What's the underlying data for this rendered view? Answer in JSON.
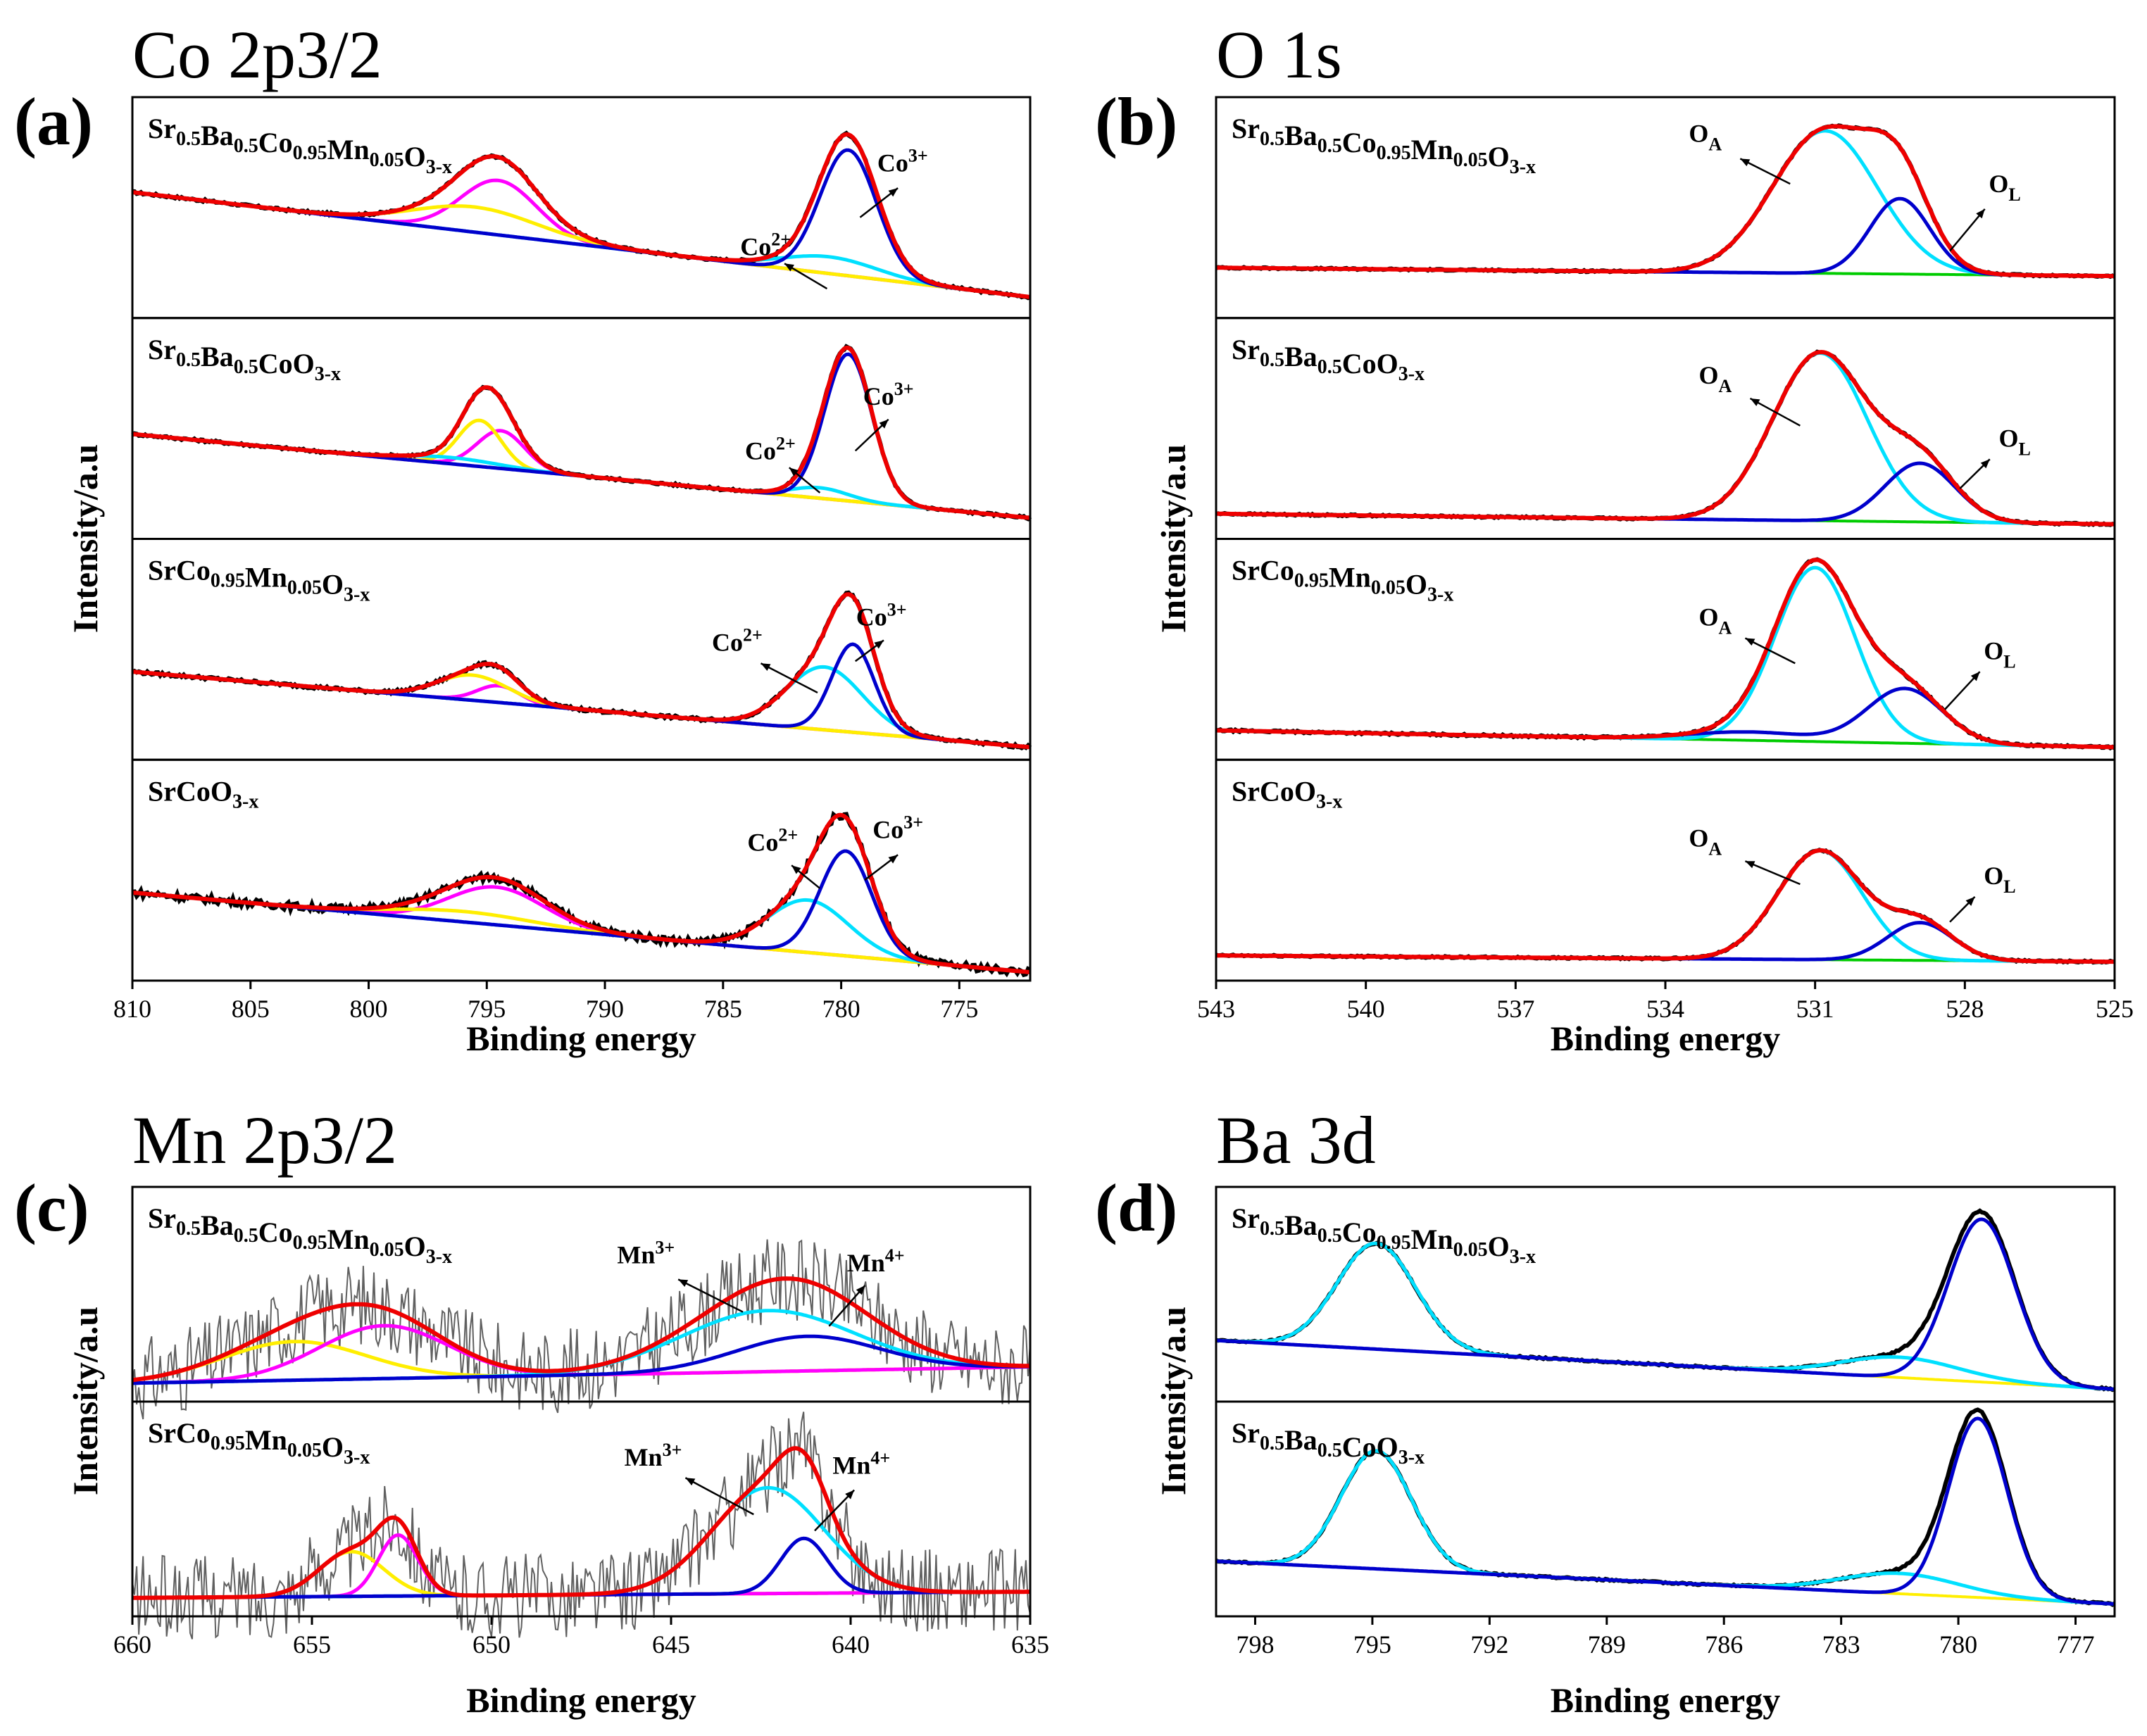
{
  "chart_data": [
    {
      "panel": "(a)",
      "title": "Co 2p3/2",
      "type": "line",
      "xlabel": "Binding energy",
      "ylabel": "Intensity/a.u",
      "xlim": [
        810,
        772
      ],
      "xticks": [
        "810",
        "805",
        "800",
        "795",
        "790",
        "785",
        "780",
        "775"
      ],
      "subplots": [
        {
          "name_main": [
            "Sr",
            "Ba",
            "Co",
            "Mn",
            "O"
          ],
          "name_subs": [
            "0.5",
            "0.5",
            "0.95",
            "0.05",
            "3-x"
          ],
          "baseline": [
            0.58,
            0.08
          ],
          "noise": 0.006,
          "components": [
            {
              "color": "#ff00ff",
              "peaks": [
                [
                  794.5,
                  0.26,
                  1.6
                ]
              ]
            },
            {
              "color": "#ffee00",
              "peaks": [
                [
                  795.5,
                  0.12,
                  2.6
                ]
              ]
            },
            {
              "color": "#00e0ff",
              "peaks": [
                [
                  780.5,
                  0.08,
                  2.0
                ]
              ]
            },
            {
              "color": "#0000cc",
              "peaks": [
                [
                  779.7,
                  0.6,
                  1.2
                ]
              ]
            }
          ],
          "annotations": [
            {
              "text": "Co",
              "sup": "2+",
              "tx": 783.2,
              "ty": 0.28,
              "ax1": 782.4,
              "ay1": 0.24,
              "ax2": 780.6,
              "ay2": 0.12
            },
            {
              "text": "Co",
              "sup": "3+",
              "tx": 777.4,
              "ty": 0.68,
              "ax1": 777.6,
              "ay1": 0.6,
              "ax2": 779.2,
              "ay2": 0.46
            }
          ]
        },
        {
          "name_main": [
            "Sr",
            "Ba",
            "CoO"
          ],
          "name_subs": [
            "0.5",
            "0.5",
            "3-x"
          ],
          "baseline": [
            0.48,
            0.08
          ],
          "noise": 0.006,
          "components": [
            {
              "color": "#ff00ff",
              "peaks": [
                [
                  794.4,
                  0.18,
                  1.0
                ]
              ]
            },
            {
              "color": "#ffee00",
              "peaks": [
                [
                  795.3,
                  0.22,
                  0.9
                ]
              ]
            },
            {
              "color": "#00e0ff",
              "peaks": [
                [
                  796.5,
                  0.03,
                  2.0
                ],
                [
                  780.9,
                  0.05,
                  1.2
                ]
              ]
            },
            {
              "color": "#0000cc",
              "peaks": [
                [
                  779.7,
                  0.7,
                  1.0
                ]
              ]
            }
          ],
          "annotations": [
            {
              "text": "Co",
              "sup": "2+",
              "tx": 783.0,
              "ty": 0.36,
              "ax1": 782.2,
              "ay1": 0.32,
              "ax2": 780.9,
              "ay2": 0.2
            },
            {
              "text": "Co",
              "sup": "3+",
              "tx": 778.0,
              "ty": 0.62,
              "ax1": 778.0,
              "ay1": 0.55,
              "ax2": 779.4,
              "ay2": 0.4
            }
          ]
        },
        {
          "name_main": [
            "SrCo",
            "Mn",
            "O"
          ],
          "name_subs": [
            "0.95",
            "0.05",
            "3-x"
          ],
          "baseline": [
            0.4,
            0.04
          ],
          "noise": 0.008,
          "components": [
            {
              "color": "#ff00ff",
              "peaks": [
                [
                  794.5,
                  0.08,
                  0.9
                ]
              ]
            },
            {
              "color": "#ffee00",
              "peaks": [
                [
                  795.6,
                  0.12,
                  1.5
                ]
              ]
            },
            {
              "color": "#00e0ff",
              "peaks": [
                [
                  780.7,
                  0.3,
                  1.6
                ]
              ]
            },
            {
              "color": "#0000cc",
              "peaks": [
                [
                  779.5,
                  0.42,
                  0.9
                ]
              ]
            }
          ],
          "annotations": [
            {
              "text": "Co",
              "sup": "2+",
              "tx": 784.4,
              "ty": 0.5,
              "ax1": 783.4,
              "ay1": 0.44,
              "ax2": 781.0,
              "ay2": 0.3
            },
            {
              "text": "Co",
              "sup": "3+",
              "tx": 778.3,
              "ty": 0.62,
              "ax1": 778.2,
              "ay1": 0.55,
              "ax2": 779.4,
              "ay2": 0.45
            }
          ]
        },
        {
          "name_main": [
            "SrCoO"
          ],
          "name_subs": [
            "3-x"
          ],
          "baseline": [
            0.4,
            0.02
          ],
          "noise": 0.018,
          "components": [
            {
              "color": "#ff00ff",
              "peaks": [
                [
                  794.6,
                  0.18,
                  2.0
                ]
              ]
            },
            {
              "color": "#ffee00",
              "peaks": [
                [
                  796.0,
                  0.05,
                  3.0
                ]
              ]
            },
            {
              "color": "#00e0ff",
              "peaks": [
                [
                  781.4,
                  0.25,
                  1.7
                ]
              ]
            },
            {
              "color": "#0000cc",
              "peaks": [
                [
                  779.8,
                  0.5,
                  1.1
                ]
              ]
            }
          ],
          "annotations": [
            {
              "text": "Co",
              "sup": "2+",
              "tx": 782.9,
              "ty": 0.6,
              "ax1": 782.1,
              "ay1": 0.53,
              "ax2": 780.9,
              "ay2": 0.42
            },
            {
              "text": "Co",
              "sup": "3+",
              "tx": 777.6,
              "ty": 0.66,
              "ax1": 777.6,
              "ay1": 0.58,
              "ax2": 779.0,
              "ay2": 0.46
            }
          ]
        }
      ]
    },
    {
      "panel": "(b)",
      "title": "O 1s",
      "type": "line",
      "xlabel": "Binding energy",
      "ylabel": "Intensity/a.u",
      "xlim": [
        543,
        525
      ],
      "xticks": [
        "543",
        "540",
        "537",
        "534",
        "531",
        "528",
        "525"
      ],
      "subplots": [
        {
          "name_main": [
            "Sr",
            "Ba",
            "Co",
            "Mn",
            "O"
          ],
          "name_subs": [
            "0.5",
            "0.5",
            "0.95",
            "0.05",
            "3-x"
          ],
          "baseline": [
            0.22,
            0.18
          ],
          "noise": 0.004,
          "components": [
            {
              "color": "#00e0ff",
              "peaks": [
                [
                  530.8,
                  0.68,
                  1.05
                ]
              ]
            },
            {
              "color": "#0000cc",
              "peaks": [
                [
                  529.3,
                  0.36,
                  0.6
                ]
              ]
            },
            {
              "color": "#00cc00",
              "peaks": []
            }
          ],
          "annotations": [
            {
              "text": "O",
              "sub": "A",
              "tx": 533.2,
              "ty": 0.82,
              "ax1": 532.5,
              "ay1": 0.74,
              "ax2": 531.5,
              "ay2": 0.62
            },
            {
              "text": "O",
              "sub": "L",
              "tx": 527.2,
              "ty": 0.58,
              "ax1": 527.6,
              "ay1": 0.5,
              "ax2": 528.3,
              "ay2": 0.3
            }
          ]
        },
        {
          "name_main": [
            "Sr",
            "Ba",
            "CoO"
          ],
          "name_subs": [
            "0.5",
            "0.5",
            "3-x"
          ],
          "baseline": [
            0.1,
            0.05
          ],
          "noise": 0.004,
          "components": [
            {
              "color": "#00e0ff",
              "peaks": [
                [
                  530.9,
                  0.8,
                  0.95
                ]
              ]
            },
            {
              "color": "#0000cc",
              "peaks": [
                [
                  528.9,
                  0.28,
                  0.7
                ]
              ]
            },
            {
              "color": "#00cc00",
              "peaks": []
            }
          ],
          "annotations": [
            {
              "text": "O",
              "sub": "A",
              "tx": 533.0,
              "ty": 0.72,
              "ax1": 532.3,
              "ay1": 0.65,
              "ax2": 531.3,
              "ay2": 0.52
            },
            {
              "text": "O",
              "sub": "L",
              "tx": 527.0,
              "ty": 0.42,
              "ax1": 527.5,
              "ay1": 0.36,
              "ax2": 528.1,
              "ay2": 0.22
            }
          ]
        },
        {
          "name_main": [
            "SrCo",
            "Mn",
            "O"
          ],
          "name_subs": [
            "0.95",
            "0.05",
            "3-x"
          ],
          "baseline": [
            0.12,
            0.04
          ],
          "noise": 0.005,
          "components": [
            {
              "color": "#00e0ff",
              "peaks": [
                [
                  531.0,
                  0.83,
                  0.8
                ]
              ]
            },
            {
              "color": "#0000cc",
              "peaks": [
                [
                  529.2,
                  0.26,
                  0.75
                ],
                [
                  532.3,
                  0.04,
                  1.2
                ]
              ]
            },
            {
              "color": "#00cc00",
              "peaks": []
            }
          ],
          "annotations": [
            {
              "text": "O",
              "sub": "A",
              "tx": 533.0,
              "ty": 0.62,
              "ax1": 532.4,
              "ay1": 0.56,
              "ax2": 531.4,
              "ay2": 0.44
            },
            {
              "text": "O",
              "sub": "L",
              "tx": 527.3,
              "ty": 0.46,
              "ax1": 527.7,
              "ay1": 0.4,
              "ax2": 528.4,
              "ay2": 0.22
            }
          ]
        },
        {
          "name_main": [
            "SrCoO"
          ],
          "name_subs": [
            "3-x"
          ],
          "baseline": [
            0.1,
            0.07
          ],
          "noise": 0.004,
          "components": [
            {
              "color": "#00e0ff",
              "peaks": [
                [
                  530.9,
                  0.52,
                  0.85
                ]
              ]
            },
            {
              "color": "#0000cc",
              "peaks": [
                [
                  528.9,
                  0.18,
                  0.65
                ]
              ]
            },
            {
              "color": "#00cc00",
              "peaks": []
            }
          ],
          "annotations": [
            {
              "text": "O",
              "sub": "A",
              "tx": 533.2,
              "ty": 0.62,
              "ax1": 532.4,
              "ay1": 0.55,
              "ax2": 531.3,
              "ay2": 0.44
            },
            {
              "text": "O",
              "sub": "L",
              "tx": 527.3,
              "ty": 0.44,
              "ax1": 527.8,
              "ay1": 0.38,
              "ax2": 528.3,
              "ay2": 0.26
            }
          ]
        }
      ]
    },
    {
      "panel": "(c)",
      "title": "Mn 2p3/2",
      "type": "line",
      "xlabel": "Binding energy",
      "ylabel": "Intensity/a.u",
      "xlim": [
        660,
        635
      ],
      "xticks": [
        "660",
        "655",
        "650",
        "645",
        "640",
        "635"
      ],
      "subplots": [
        {
          "name_main": [
            "Sr",
            "Ba",
            "Co",
            "Mn",
            "O"
          ],
          "name_subs": [
            "0.5",
            "0.5",
            "0.95",
            "0.05",
            "3-x"
          ],
          "baseline": [
            0.07,
            0.15
          ],
          "noise": 0.07,
          "raw_color": "#606060",
          "components": [
            {
              "color": "#ffee00",
              "peaks": [
                [
                  655.5,
                  0.19,
                  2.0
                ]
              ]
            },
            {
              "color": "#ff00ff",
              "peaks": [
                [
                  653.0,
                  0.26,
                  1.8
                ]
              ]
            },
            {
              "color": "#00e0ff",
              "peaks": [
                [
                  642.3,
                  0.3,
                  2.4
                ]
              ]
            },
            {
              "color": "#0000cc",
              "peaks": [
                [
                  641.2,
                  0.17,
                  2.0
                ]
              ]
            }
          ],
          "annotations": [
            {
              "text": "Mn",
              "sup": "3+",
              "tx": 645.7,
              "ty": 0.66,
              "ax1": 644.8,
              "ay1": 0.58,
              "ax2": 643.0,
              "ay2": 0.42
            },
            {
              "text": "Mn",
              "sup": "4+",
              "tx": 639.3,
              "ty": 0.62,
              "ax1": 639.6,
              "ay1": 0.55,
              "ax2": 640.6,
              "ay2": 0.35
            }
          ]
        },
        {
          "name_main": [
            "SrCo",
            "Mn",
            "O"
          ],
          "name_subs": [
            "0.95",
            "0.05",
            "3-x"
          ],
          "baseline": [
            0.07,
            0.1
          ],
          "noise": 0.07,
          "raw_color": "#606060",
          "components": [
            {
              "color": "#ffee00",
              "peaks": [
                [
                  653.9,
                  0.22,
                  0.9
                ]
              ]
            },
            {
              "color": "#ff00ff",
              "peaks": [
                [
                  652.6,
                  0.3,
                  0.55
                ]
              ]
            },
            {
              "color": "#00e0ff",
              "peaks": [
                [
                  642.3,
                  0.52,
                  1.55
                ]
              ]
            },
            {
              "color": "#0000cc",
              "peaks": [
                [
                  641.3,
                  0.27,
                  0.65
                ]
              ]
            }
          ],
          "annotations": [
            {
              "text": "Mn",
              "sup": "3+",
              "tx": 645.5,
              "ty": 0.72,
              "ax1": 644.6,
              "ay1": 0.66,
              "ax2": 642.7,
              "ay2": 0.48
            },
            {
              "text": "Mn",
              "sup": "4+",
              "tx": 639.7,
              "ty": 0.68,
              "ax1": 639.9,
              "ay1": 0.6,
              "ax2": 641.0,
              "ay2": 0.4
            }
          ]
        }
      ]
    },
    {
      "panel": "(d)",
      "title": "Ba 3d",
      "type": "line",
      "xlabel": "Binding energy",
      "ylabel": "Intensity/a.u",
      "xlim": [
        799,
        776
      ],
      "xticks": [
        "798",
        "795",
        "792",
        "789",
        "786",
        "783",
        "780",
        "777"
      ],
      "subplots": [
        {
          "name_main": [
            "Sr",
            "Ba",
            "Co",
            "Mn",
            "O"
          ],
          "name_subs": [
            "0.5",
            "0.5",
            "0.95",
            "0.05",
            "3-x"
          ],
          "baseline": [
            0.28,
            0.04
          ],
          "noise": 0.004,
          "components": [
            {
              "color": "#00e0ff",
              "peaks": [
                [
                  794.9,
                  0.52,
                  1.0
                ]
              ],
              "shoulder": [
                781.5,
                0.1,
                1.5
              ]
            },
            {
              "color": "#0000cc",
              "peaks": [
                [
                  779.4,
                  0.8,
                  0.85
                ]
              ]
            }
          ],
          "annotations": []
        },
        {
          "name_main": [
            "Sr",
            "Ba",
            "CoO"
          ],
          "name_subs": [
            "0.5",
            "0.5",
            "3-x"
          ],
          "baseline": [
            0.25,
            0.04
          ],
          "noise": 0.004,
          "components": [
            {
              "color": "#00e0ff",
              "peaks": [
                [
                  794.9,
                  0.58,
                  0.9
                ]
              ],
              "shoulder": [
                781.5,
                0.1,
                1.5
              ]
            },
            {
              "color": "#0000cc",
              "peaks": [
                [
                  779.5,
                  0.88,
                  0.75
                ]
              ]
            }
          ],
          "annotations": []
        }
      ]
    }
  ]
}
